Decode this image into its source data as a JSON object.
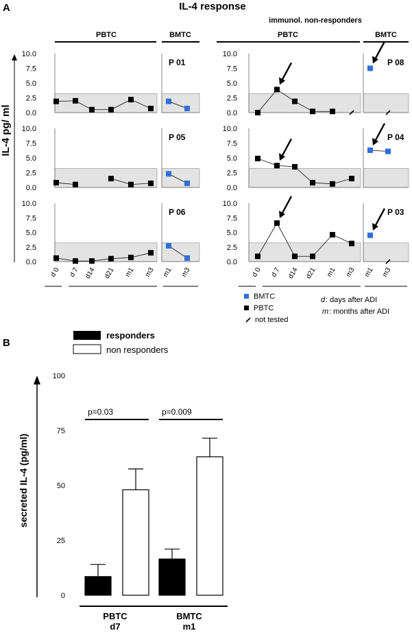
{
  "panel_a_label": "A",
  "panel_b_label": "B",
  "panel_a_title": "IL-4 response",
  "nonresponder_header": "immunol. non-responders",
  "group_pbtc": "PBTC",
  "group_bmtc": "BMTC",
  "y_axis_label_a": "IL-4 pg/ ml",
  "y_ticks_a": [
    "10.0",
    "7.5",
    "5.0",
    "2.5",
    "0.0"
  ],
  "pbtc_timepoints": [
    "d 0",
    "d 7",
    "d14",
    "d21",
    "m1",
    "m3"
  ],
  "bmtc_timepoints": [
    "m1",
    "m3"
  ],
  "legend": {
    "bmtc": "BMTC",
    "pbtc": "PBTC",
    "not_tested": "not tested",
    "d_key": "d",
    "d_desc": ": days after ADI",
    "m_key": "m",
    "m_desc": ": months after ADI"
  },
  "colors": {
    "bmtc": "#2f6fd8",
    "pbtc": "#000000",
    "band": "#e3e3e3"
  },
  "chart_data": [
    {
      "type": "line",
      "title": "P 01",
      "group": "responders",
      "ylim": [
        0,
        10
      ],
      "normal_range": [
        0,
        3.2
      ],
      "pbtc": {
        "x": [
          "d 0",
          "d 7",
          "d14",
          "d21",
          "m1",
          "m3"
        ],
        "values": [
          1.9,
          2.0,
          0.5,
          0.5,
          2.2,
          0.7
        ]
      },
      "bmtc": {
        "x": [
          "m1",
          "m3"
        ],
        "values": [
          1.9,
          0.7
        ]
      }
    },
    {
      "type": "line",
      "title": "P 05",
      "group": "responders",
      "ylim": [
        0,
        10
      ],
      "normal_range": [
        0,
        3.2
      ],
      "pbtc": {
        "x": [
          "d 0",
          "d 7",
          "d14",
          "d21",
          "m1",
          "m3"
        ],
        "values": [
          0.8,
          0.5,
          null,
          1.5,
          0.5,
          0.7
        ]
      },
      "bmtc": {
        "x": [
          "m1",
          "m3"
        ],
        "values": [
          2.3,
          0.7
        ]
      }
    },
    {
      "type": "line",
      "title": "P 06",
      "group": "responders",
      "ylim": [
        0,
        10
      ],
      "normal_range": [
        0,
        3.2
      ],
      "pbtc": {
        "x": [
          "d 0",
          "d 7",
          "d14",
          "d21",
          "m1",
          "m3"
        ],
        "values": [
          0.6,
          0.1,
          0.1,
          0.5,
          0.7,
          1.5
        ]
      },
      "bmtc": {
        "x": [
          "m1",
          "m3"
        ],
        "values": [
          2.7,
          0.6
        ]
      }
    },
    {
      "type": "line",
      "title": "P 08",
      "group": "immunol. non-responders",
      "ylim": [
        0,
        10
      ],
      "normal_range": [
        0,
        3.2
      ],
      "pbtc": {
        "x": [
          "d 0",
          "d 7",
          "d14",
          "d21",
          "m1",
          "m3"
        ],
        "values": [
          0.0,
          3.9,
          1.9,
          0.2,
          0.2,
          null
        ],
        "not_tested": [
          "m3"
        ],
        "arrow_at": "d 7"
      },
      "bmtc": {
        "x": [
          "m1",
          "m3"
        ],
        "values": [
          7.5,
          null
        ],
        "not_tested": [
          "m3"
        ],
        "arrow_at": "m1"
      }
    },
    {
      "type": "line",
      "title": "P 04",
      "group": "immunol. non-responders",
      "ylim": [
        0,
        10
      ],
      "normal_range": [
        0,
        3.2
      ],
      "pbtc": {
        "x": [
          "d 0",
          "d 7",
          "d14",
          "d21",
          "m1",
          "m3"
        ],
        "values": [
          4.9,
          3.7,
          3.5,
          0.8,
          0.6,
          1.5
        ],
        "arrow_at": "d 7"
      },
      "bmtc": {
        "x": [
          "m1",
          "m3"
        ],
        "values": [
          6.3,
          6.1
        ],
        "arrow_at": "m1"
      }
    },
    {
      "type": "line",
      "title": "P 03",
      "group": "immunol. non-responders",
      "ylim": [
        0,
        10
      ],
      "normal_range": [
        0,
        3.2
      ],
      "pbtc": {
        "x": [
          "d 0",
          "d 7",
          "d14",
          "d21",
          "m1",
          "m3"
        ],
        "values": [
          0.9,
          6.6,
          0.9,
          0.9,
          4.6,
          3.1
        ],
        "arrow_at": "d 7"
      },
      "bmtc": {
        "x": [
          "m1",
          "m3"
        ],
        "values": [
          4.5,
          null
        ],
        "not_tested": [
          "m3"
        ],
        "arrow_at": "m1"
      }
    },
    {
      "type": "bar",
      "title": "",
      "ylabel": "secreted IL-4 (pg/ml)",
      "ylim": [
        0,
        100
      ],
      "yticks": [
        "0",
        "25",
        "50",
        "75",
        "100"
      ],
      "legend": [
        "responders",
        "non responders"
      ],
      "groups": [
        {
          "label_top": "PBTC",
          "label_bottom": "d7",
          "p_value": "p=0.03",
          "responders": 8.5,
          "responders_err": 5.5,
          "non_responders": 48,
          "non_responders_err": 9.5
        },
        {
          "label_top": "BMTC",
          "label_bottom": "m1",
          "p_value": "p=0.009",
          "responders": 16.5,
          "responders_err": 4.5,
          "non_responders": 63,
          "non_responders_err": 8.5
        }
      ]
    }
  ]
}
